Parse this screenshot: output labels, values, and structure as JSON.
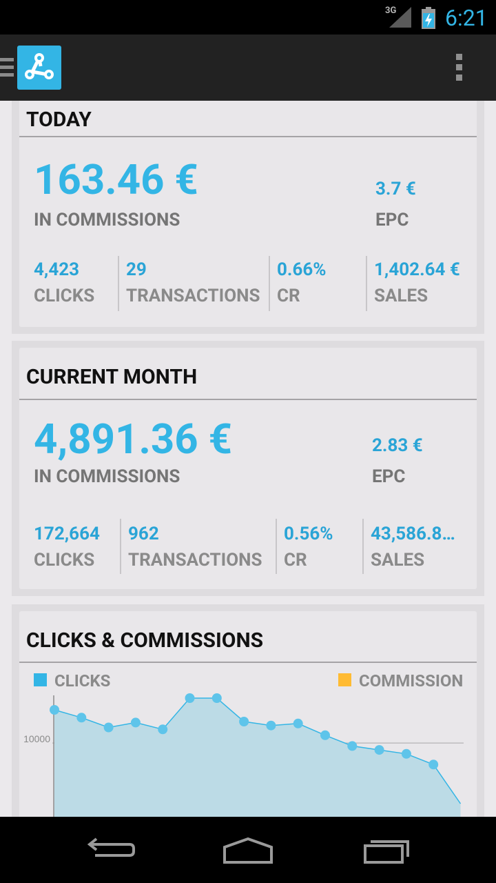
{
  "status_bar": {
    "network": "3G",
    "time": "6:21",
    "icons": [
      "signal-icon",
      "battery-charging-icon"
    ]
  },
  "action_bar": {
    "icons": [
      "drawer-icon",
      "app-logo-icon",
      "overflow-menu-icon"
    ]
  },
  "today": {
    "title": "TODAY",
    "commissions_value": "163.46 €",
    "commissions_label": "IN COMMISSIONS",
    "epc_value": "3.7 €",
    "epc_label": "EPC",
    "stats": [
      {
        "value": "4,423",
        "label": "CLICKS"
      },
      {
        "value": "29",
        "label": "TRANSACTIONS"
      },
      {
        "value": "0.66%",
        "label": "CR"
      },
      {
        "value": "1,402.64 €",
        "label": "SALES"
      }
    ]
  },
  "current_month": {
    "title": "CURRENT MONTH",
    "commissions_value": "4,891.36 €",
    "commissions_label": "IN COMMISSIONS",
    "epc_value": "2.83 €",
    "epc_label": "EPC",
    "stats": [
      {
        "value": "172,664",
        "label": "CLICKS"
      },
      {
        "value": "962",
        "label": "TRANSACTIONS"
      },
      {
        "value": "0.56%",
        "label": "CR"
      },
      {
        "value": "43,586.8…",
        "label": "SALES"
      }
    ]
  },
  "chart_card": {
    "title": "CLICKS & COMMISSIONS",
    "legend": [
      {
        "label": "CLICKS",
        "color": "#33b5e5"
      },
      {
        "label": "COMMISSION",
        "color": "#ffbb33"
      }
    ]
  },
  "chart_data": {
    "type": "area",
    "series": [
      {
        "name": "CLICKS",
        "color": "#33b5e5",
        "values": [
          11700,
          11300,
          10800,
          11050,
          10700,
          12300,
          12300,
          11100,
          10900,
          11000,
          10400,
          9850,
          9650,
          9450,
          8900,
          6900
        ]
      }
    ],
    "y_ticks": [
      10000
    ],
    "ylim": [
      6900,
      12300
    ],
    "grid": true
  },
  "colors": {
    "accent": "#33b5e5",
    "background": "#ebe9ec",
    "action_bar": "#222222"
  }
}
